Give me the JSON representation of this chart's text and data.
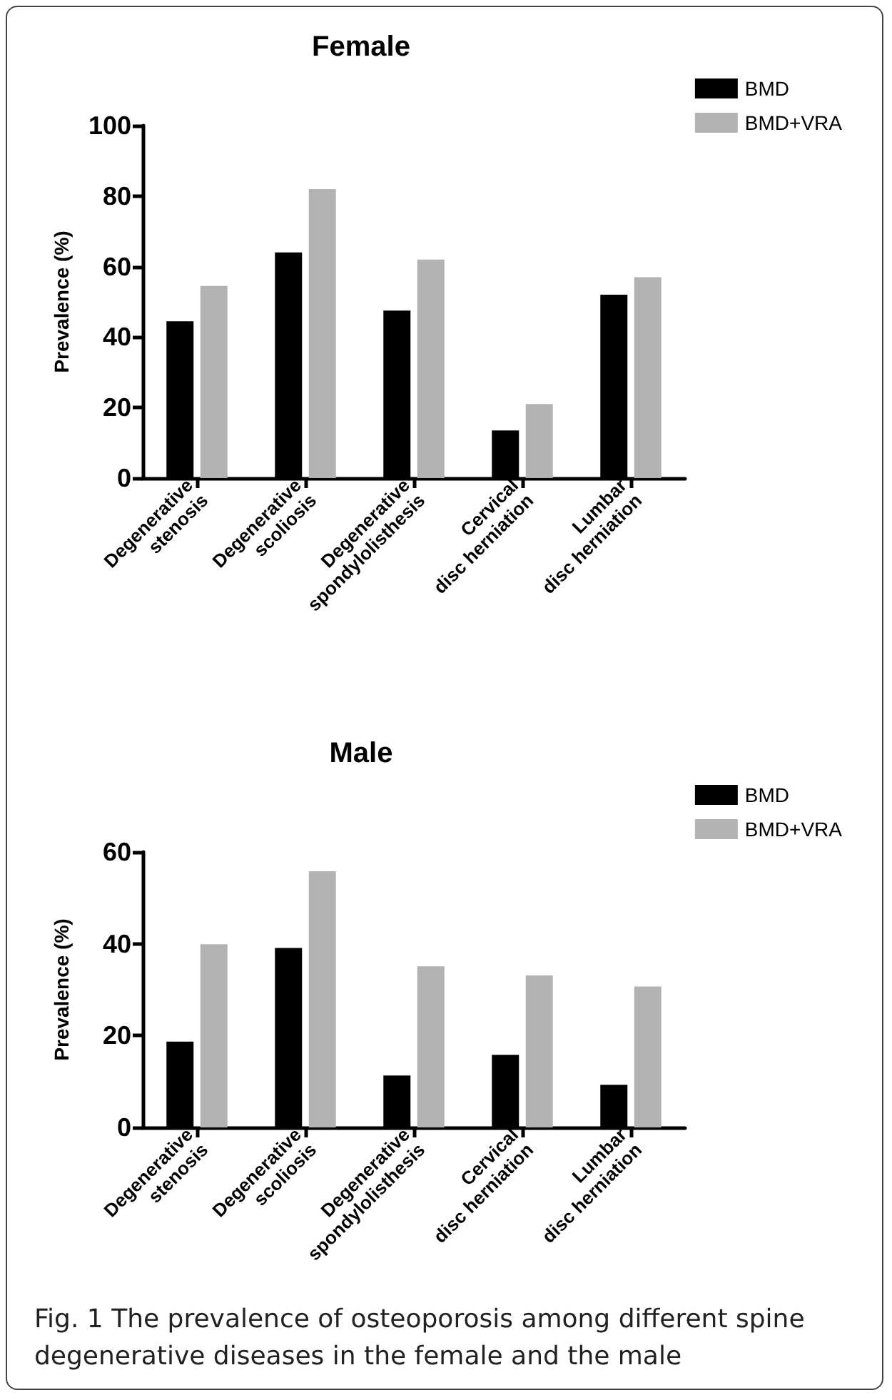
{
  "chart_data": [
    {
      "type": "bar",
      "title": "Female",
      "ylabel": "Prevalence (%)",
      "categories": [
        "Degenerative\nstenosis",
        "Degenerative\nscoliosis",
        "Degenerative\nspondylolisthesis",
        "Cervical\ndisc herniation",
        "Lumbar\ndisc herniation"
      ],
      "series": [
        {
          "name": "BMD",
          "color": "#000000",
          "values": [
            44.5,
            64,
            47.5,
            13.5,
            52
          ]
        },
        {
          "name": "BMD+VRA",
          "color": "#b3b3b3",
          "values": [
            54.5,
            82,
            62,
            21,
            57
          ]
        }
      ],
      "ylim": [
        0,
        100
      ],
      "yticks": [
        0,
        20,
        40,
        60,
        80,
        100
      ],
      "grid": false,
      "legend": "top right"
    },
    {
      "type": "bar",
      "title": "Male",
      "ylabel": "Prevalence (%)",
      "categories": [
        "Degenerative\nstenosis",
        "Degenerative\nscoliosis",
        "Degenerative\nspondylolisthesis",
        "Cervical\ndisc herniation",
        "Lumbar\ndisc herniation"
      ],
      "series": [
        {
          "name": "BMD",
          "color": "#000000",
          "values": [
            18.7,
            39.1,
            11.3,
            15.8,
            9.3
          ]
        },
        {
          "name": "BMD+VRA",
          "color": "#b3b3b3",
          "values": [
            39.9,
            55.8,
            35.1,
            33.1,
            30.7
          ]
        }
      ],
      "ylim": [
        0,
        60
      ],
      "yticks": [
        0,
        20,
        40,
        60
      ],
      "grid": false,
      "legend": "top right",
      "annotations": [
        "Fig. 1 The prevalence of osteoporosis among different spine degenerative diseases in the female and the male"
      ]
    }
  ]
}
